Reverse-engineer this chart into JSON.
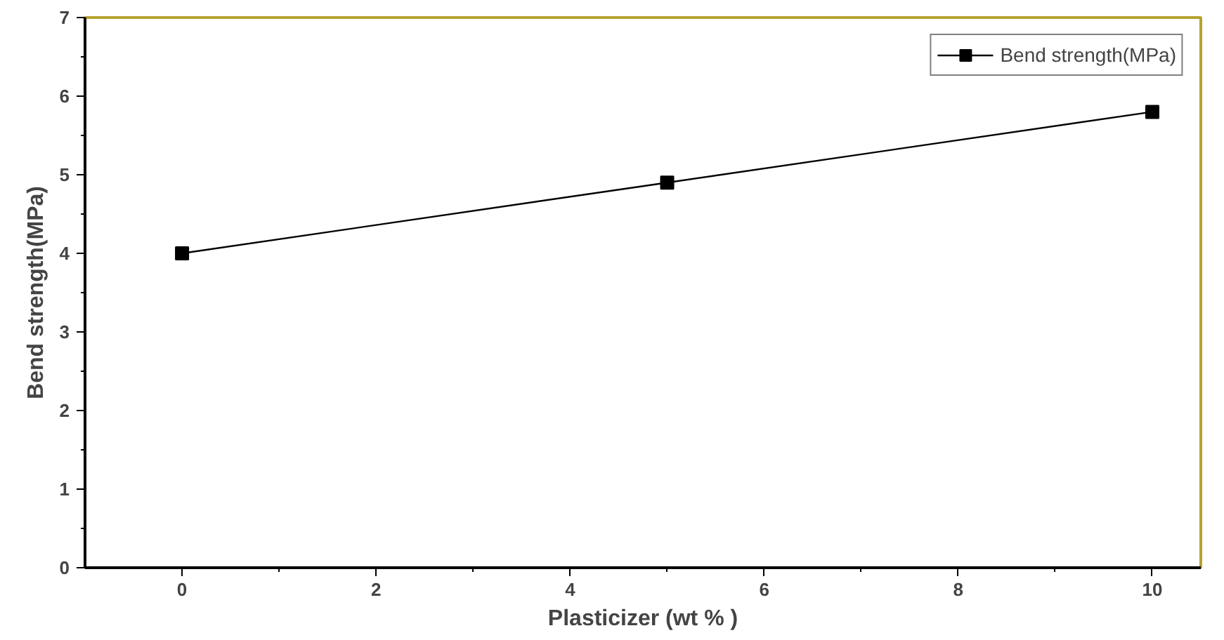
{
  "chart_data": {
    "type": "line",
    "xlabel": "Plasticizer (wt % )",
    "ylabel": "Bend strength(MPa)",
    "x": [
      0,
      5,
      10
    ],
    "series": [
      {
        "name": "Bend strength(MPa)",
        "color": "#000000",
        "values": [
          4.0,
          4.9,
          5.8
        ]
      }
    ],
    "xlim": [
      -1,
      10.5
    ],
    "xticks": [
      0,
      2,
      4,
      6,
      8,
      10
    ],
    "ylim": [
      0,
      7
    ],
    "yticks": [
      0,
      1,
      2,
      3,
      4,
      5,
      6,
      7
    ],
    "marker": "square",
    "line_style": "solid",
    "legend": "top right",
    "grid": false
  }
}
